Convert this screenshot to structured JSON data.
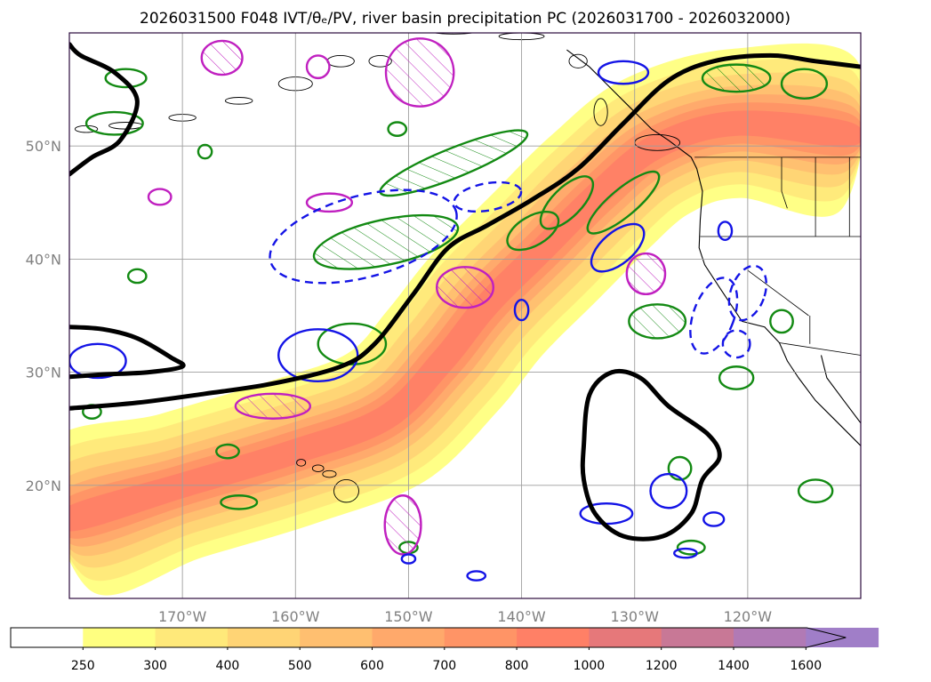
{
  "chart_data": {
    "type": "contour-map",
    "title": "2026031500 F048 IVT/θₑ/PV, river basin precipitation PC (2026031700 - 2026032000)",
    "x_axis": {
      "range": [
        -180,
        -110
      ],
      "ticks": [
        -170,
        -160,
        -150,
        -140,
        -130,
        -120
      ],
      "tick_labels": [
        "170°W",
        "160°W",
        "150°W",
        "140°W",
        "130°W",
        "120°W"
      ]
    },
    "y_axis": {
      "range": [
        10,
        60
      ],
      "ticks": [
        20,
        30,
        40,
        50
      ],
      "tick_labels": [
        "20°N",
        "30°N",
        "40°N",
        "50°N"
      ]
    },
    "grid": true,
    "colorbar": {
      "orientation": "horizontal",
      "placement": "bottom",
      "extend": "max",
      "levels": [
        250,
        300,
        400,
        500,
        600,
        700,
        800,
        1000,
        1200,
        1400,
        1600
      ],
      "labels": [
        "250",
        "300",
        "400",
        "500",
        "600",
        "700",
        "800",
        "1000",
        "1200",
        "1400",
        "1600"
      ],
      "colors": [
        "#ffff80",
        "#ffe97a",
        "#ffd475",
        "#ffbf70",
        "#ffa96b",
        "#ff9466",
        "#ff8066",
        "#e6787a",
        "#c87896",
        "#b17ab5",
        "#a07ec8"
      ]
    },
    "ivt_band": {
      "description": "atmospheric river IVT filled contours",
      "axis_points": [
        [
          -180,
          17
        ],
        [
          -170,
          20
        ],
        [
          -160,
          23
        ],
        [
          -152,
          26
        ],
        [
          -147,
          31
        ],
        [
          -143,
          36
        ],
        [
          -138,
          41
        ],
        [
          -133,
          46
        ],
        [
          -128,
          50
        ],
        [
          -121,
          52
        ],
        [
          -111,
          51
        ]
      ],
      "layers": [
        {
          "level": 250,
          "half_width_deg": 6.6
        },
        {
          "level": 300,
          "half_width_deg": 5.4
        },
        {
          "level": 400,
          "half_width_deg": 4.3
        },
        {
          "level": 500,
          "half_width_deg": 3.3
        },
        {
          "level": 600,
          "half_width_deg": 2.5
        },
        {
          "level": 700,
          "half_width_deg": 1.8
        },
        {
          "level": 800,
          "half_width_deg": 1.1
        }
      ]
    },
    "theta_e_contour": {
      "description": "thick black contour",
      "main": [
        [
          -180,
          26.8
        ],
        [
          -174,
          27.3
        ],
        [
          -168,
          28.1
        ],
        [
          -162,
          29.0
        ],
        [
          -156,
          30.5
        ],
        [
          -153,
          32.5
        ],
        [
          -149.5,
          37
        ],
        [
          -146.5,
          41
        ],
        [
          -143,
          43
        ],
        [
          -139,
          45.3
        ],
        [
          -135,
          48
        ],
        [
          -131,
          52
        ],
        [
          -127,
          55.8
        ],
        [
          -123,
          57.5
        ],
        [
          -118,
          58
        ],
        [
          -114,
          57.5
        ],
        [
          -110,
          57
        ]
      ],
      "upper_left": [
        [
          -180,
          47.5
        ],
        [
          -178,
          49
        ],
        [
          -175.5,
          50.5
        ],
        [
          -174,
          54
        ],
        [
          -176,
          56.5
        ],
        [
          -179,
          58
        ],
        [
          -180,
          59
        ]
      ],
      "left_low": [
        [
          -180,
          34
        ],
        [
          -177,
          33.8
        ],
        [
          -174,
          33
        ],
        [
          -171,
          31.3
        ],
        [
          -170,
          30.5
        ],
        [
          -173,
          30
        ],
        [
          -177,
          29.8
        ],
        [
          -180,
          29.6
        ]
      ],
      "closed_low": [
        [
          -134.5,
          23.5
        ],
        [
          -134,
          28
        ],
        [
          -132,
          30
        ],
        [
          -129.5,
          29.5
        ],
        [
          -127,
          27
        ],
        [
          -123.5,
          24.5
        ],
        [
          -122.5,
          22.5
        ],
        [
          -124,
          20.5
        ],
        [
          -125,
          17.5
        ],
        [
          -127.5,
          15.5
        ],
        [
          -131,
          15.5
        ],
        [
          -133.5,
          17.5
        ],
        [
          -134.5,
          20.5
        ]
      ]
    },
    "pv_contours_green": [
      {
        "cx": -152,
        "cy": 41.5,
        "rx": 6.5,
        "ry": 2.0,
        "rot": -12,
        "hatch": true
      },
      {
        "cx": -146,
        "cy": 48.5,
        "rx": 7.0,
        "ry": 1.3,
        "rot": -22,
        "hatch": true
      },
      {
        "cx": -139,
        "cy": 42.5,
        "rx": 2.5,
        "ry": 1.3,
        "rot": -30,
        "hatch": false
      },
      {
        "cx": -136,
        "cy": 45.0,
        "rx": 3.0,
        "ry": 1.3,
        "rot": -45,
        "hatch": false
      },
      {
        "cx": -131,
        "cy": 45.0,
        "rx": 4.0,
        "ry": 1.2,
        "rot": -40,
        "hatch": false
      },
      {
        "cx": -128,
        "cy": 34.5,
        "rx": 2.5,
        "ry": 1.5,
        "rot": 0,
        "hatch": true
      },
      {
        "cx": -121,
        "cy": 56.0,
        "rx": 3.0,
        "ry": 1.2,
        "rot": 0,
        "hatch": true
      },
      {
        "cx": -115,
        "cy": 55.5,
        "rx": 2.0,
        "ry": 1.3,
        "rot": 0,
        "hatch": false
      },
      {
        "cx": -176,
        "cy": 52.0,
        "rx": 2.5,
        "ry": 1.0,
        "rot": 0,
        "hatch": false
      },
      {
        "cx": -175,
        "cy": 56.0,
        "rx": 1.8,
        "ry": 0.8,
        "rot": 0,
        "hatch": false
      },
      {
        "cx": -155,
        "cy": 32.5,
        "rx": 3.0,
        "ry": 1.8,
        "rot": 0,
        "hatch": false
      },
      {
        "cx": -165,
        "cy": 18.5,
        "rx": 1.6,
        "ry": 0.6,
        "rot": 0,
        "hatch": false
      },
      {
        "cx": -121,
        "cy": 29.5,
        "rx": 1.5,
        "ry": 1.0,
        "rot": 0,
        "hatch": false
      },
      {
        "cx": -117,
        "cy": 34.5,
        "rx": 1.0,
        "ry": 1.0,
        "rot": 0,
        "hatch": false
      },
      {
        "cx": -114,
        "cy": 19.5,
        "rx": 1.5,
        "ry": 1.0,
        "rot": 0,
        "hatch": false
      },
      {
        "cx": -126,
        "cy": 21.5,
        "rx": 1.0,
        "ry": 1.0,
        "rot": 0,
        "hatch": false
      },
      {
        "cx": -125,
        "cy": 14.5,
        "rx": 1.2,
        "ry": 0.6,
        "rot": 0,
        "hatch": false
      },
      {
        "cx": -150,
        "cy": 14.5,
        "rx": 0.8,
        "ry": 0.5,
        "rot": 0,
        "hatch": false
      },
      {
        "cx": -178,
        "cy": 26.5,
        "rx": 0.8,
        "ry": 0.6,
        "rot": 0,
        "hatch": false
      },
      {
        "cx": -174,
        "cy": 38.5,
        "rx": 0.8,
        "ry": 0.6,
        "rot": 0,
        "hatch": false
      },
      {
        "cx": -166,
        "cy": 23.0,
        "rx": 1.0,
        "ry": 0.6,
        "rot": 0,
        "hatch": false
      },
      {
        "cx": -151,
        "cy": 51.5,
        "rx": 0.8,
        "ry": 0.6,
        "rot": 0,
        "hatch": false
      },
      {
        "cx": -168,
        "cy": 49.5,
        "rx": 0.6,
        "ry": 0.6,
        "rot": 0,
        "hatch": false
      }
    ],
    "pv_contours_magenta": [
      {
        "cx": -162,
        "cy": 27.0,
        "rx": 3.3,
        "ry": 1.1,
        "rot": 0,
        "hatch": true
      },
      {
        "cx": -150.5,
        "cy": 16.5,
        "rx": 1.6,
        "ry": 2.6,
        "rot": 0,
        "hatch": true
      },
      {
        "cx": -145,
        "cy": 37.5,
        "rx": 2.5,
        "ry": 1.8,
        "rot": 0,
        "hatch": true
      },
      {
        "cx": -129,
        "cy": 38.7,
        "rx": 1.7,
        "ry": 1.8,
        "rot": 0,
        "hatch": true
      },
      {
        "cx": -149,
        "cy": 56.5,
        "rx": 3.0,
        "ry": 3.0,
        "rot": 0,
        "hatch": true
      },
      {
        "cx": -158,
        "cy": 57.0,
        "rx": 1.0,
        "ry": 1.0,
        "rot": 0,
        "hatch": false
      },
      {
        "cx": -166.5,
        "cy": 57.8,
        "rx": 1.8,
        "ry": 1.5,
        "rot": 0,
        "hatch": true
      },
      {
        "cx": -157,
        "cy": 45.0,
        "rx": 2.0,
        "ry": 0.8,
        "rot": 0,
        "hatch": false
      },
      {
        "cx": -172,
        "cy": 45.5,
        "rx": 1.0,
        "ry": 0.7,
        "rot": 0,
        "hatch": false
      }
    ],
    "pv_contours_blue_solid": [
      {
        "cx": -158,
        "cy": 31.5,
        "rx": 3.5,
        "ry": 2.3,
        "rot": 0
      },
      {
        "cx": -131.5,
        "cy": 41.0,
        "rx": 2.8,
        "ry": 1.4,
        "rot": -40
      },
      {
        "cx": -140,
        "cy": 35.5,
        "rx": 0.6,
        "ry": 0.9,
        "rot": 0
      },
      {
        "cx": -132.5,
        "cy": 17.5,
        "rx": 2.3,
        "ry": 0.9,
        "rot": 0
      },
      {
        "cx": -127,
        "cy": 19.5,
        "rx": 1.6,
        "ry": 1.5,
        "rot": 0
      },
      {
        "cx": -123,
        "cy": 17.0,
        "rx": 0.9,
        "ry": 0.6,
        "rot": 0
      },
      {
        "cx": -177.5,
        "cy": 31.0,
        "rx": 2.5,
        "ry": 1.5,
        "rot": 0
      },
      {
        "cx": -131,
        "cy": 56.5,
        "rx": 2.2,
        "ry": 1.0,
        "rot": 0
      },
      {
        "cx": -144,
        "cy": 12.0,
        "rx": 0.8,
        "ry": 0.4,
        "rot": 0
      },
      {
        "cx": -150,
        "cy": 13.5,
        "rx": 0.6,
        "ry": 0.4,
        "rot": 0
      },
      {
        "cx": -125.5,
        "cy": 14.0,
        "rx": 1.0,
        "ry": 0.4,
        "rot": 0
      },
      {
        "cx": -122,
        "cy": 42.5,
        "rx": 0.6,
        "ry": 0.8,
        "rot": 0
      }
    ],
    "pv_contours_blue_dashed": [
      {
        "cx": -154,
        "cy": 42.0,
        "rx": 8.5,
        "ry": 3.6,
        "rot": -15
      },
      {
        "cx": -143,
        "cy": 45.5,
        "rx": 3.0,
        "ry": 1.2,
        "rot": -10
      },
      {
        "cx": -123,
        "cy": 35.0,
        "rx": 1.8,
        "ry": 3.5,
        "rot": 20
      },
      {
        "cx": -120,
        "cy": 37.0,
        "rx": 1.5,
        "ry": 2.5,
        "rot": 20
      },
      {
        "cx": -121,
        "cy": 32.5,
        "rx": 1.2,
        "ry": 1.2,
        "rot": 0
      }
    ]
  }
}
